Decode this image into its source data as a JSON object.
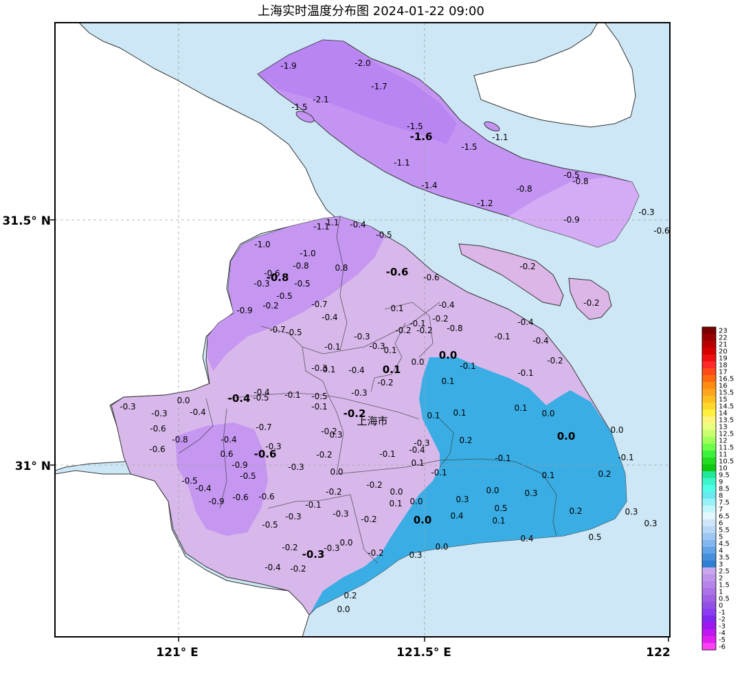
{
  "title": "上海实时温度分布图 2024-01-22 09:00",
  "map": {
    "city_label": "上海市",
    "x_ticks": [
      "121° E",
      "121.5° E",
      "122"
    ],
    "y_ticks": [
      "31.5° N",
      "31° N"
    ],
    "stations_regular": [
      [
        "-1.9",
        420,
        96
      ],
      [
        "-2.0",
        528,
        92
      ],
      [
        "-1.7",
        552,
        126
      ],
      [
        "-2.1",
        467,
        145
      ],
      [
        "-1.5",
        436,
        156
      ],
      [
        "-1.5",
        604,
        184
      ],
      [
        "-1.5",
        683,
        214
      ],
      [
        "-1.1",
        728,
        200
      ],
      [
        "-1.1",
        585,
        237
      ],
      [
        "-1.4",
        625,
        270
      ],
      [
        "-1.2",
        706,
        296
      ],
      [
        "-0.8",
        763,
        275
      ],
      [
        "-0.5",
        832,
        255
      ],
      [
        "-0.8",
        845,
        264
      ],
      [
        "-0.9",
        832,
        320
      ],
      [
        "-0.3",
        941,
        309
      ],
      [
        "-0.6",
        963,
        336
      ],
      [
        "-0.2",
        768,
        388
      ],
      [
        "-0.2",
        861,
        441
      ],
      [
        "-1.1",
        468,
        330
      ],
      [
        "1.1",
        484,
        324
      ],
      [
        "-0.4",
        521,
        327
      ],
      [
        "-0.5",
        559,
        342
      ],
      [
        "-1.0",
        382,
        356
      ],
      [
        "-1.0",
        448,
        369
      ],
      [
        "-0.8",
        438,
        387
      ],
      [
        "0.8",
        497,
        390
      ],
      [
        "-0.6",
        396,
        398
      ],
      [
        "-0.3",
        381,
        413
      ],
      [
        "-0.5",
        414,
        431
      ],
      [
        "-0.5",
        440,
        413
      ],
      [
        "-0.2",
        394,
        445
      ],
      [
        "-0.7",
        465,
        443
      ],
      [
        "-0.9",
        356,
        452
      ],
      [
        "-0.4",
        480,
        462
      ],
      [
        "-0.7",
        404,
        480
      ],
      [
        "-0.5",
        428,
        484
      ],
      [
        "-0.6",
        628,
        404
      ],
      [
        "-0.4",
        650,
        444
      ],
      [
        "0.1",
        578,
        449
      ],
      [
        "-0.2",
        641,
        464
      ],
      [
        "-0.1",
        608,
        471
      ],
      [
        "-0.2",
        618,
        481
      ],
      [
        "-0.2",
        587,
        481
      ],
      [
        "-0.8",
        662,
        478
      ],
      [
        "-0.3",
        527,
        490
      ],
      [
        "-0.1",
        484,
        505
      ],
      [
        "-0.3",
        549,
        504
      ],
      [
        "0.1",
        568,
        510
      ],
      [
        "0.0",
        608,
        527
      ],
      [
        "-0.1",
        681,
        533
      ],
      [
        "-0.4",
        765,
        469
      ],
      [
        "-0.1",
        731,
        490
      ],
      [
        "-0.4",
        787,
        496
      ],
      [
        "-0.2",
        808,
        525
      ],
      [
        "-0.1",
        765,
        543
      ],
      [
        "-0.3",
        465,
        536
      ],
      [
        "0.1",
        479,
        538
      ],
      [
        "-0.4",
        519,
        539
      ],
      [
        "-0.2",
        561,
        557
      ],
      [
        "0.1",
        652,
        555
      ],
      [
        "-0.3",
        523,
        572
      ],
      [
        "-0.3",
        186,
        592
      ],
      [
        "0.0",
        267,
        583
      ],
      [
        "-0.3",
        232,
        602
      ],
      [
        "-0.4",
        288,
        600
      ],
      [
        "-0.4",
        381,
        571
      ],
      [
        "-0.5",
        380,
        579
      ],
      [
        "-0.1",
        426,
        575
      ],
      [
        "-0.5",
        465,
        577
      ],
      [
        "-0.1",
        465,
        592
      ],
      [
        "0.1",
        669,
        601
      ],
      [
        "0.1",
        631,
        605
      ],
      [
        "0.1",
        758,
        594
      ],
      [
        "0.0",
        798,
        602
      ],
      [
        "0.0",
        898,
        626
      ],
      [
        "-0.6",
        230,
        624
      ],
      [
        "-0.8",
        262,
        640
      ],
      [
        "-0.4",
        333,
        640
      ],
      [
        "-0.7",
        384,
        622
      ],
      [
        "-0.3",
        398,
        650
      ],
      [
        "-0.2",
        479,
        628
      ],
      [
        "0.3",
        489,
        633
      ],
      [
        "-0.3",
        614,
        645
      ],
      [
        "-0.4",
        607,
        655
      ],
      [
        "0.2",
        678,
        641
      ],
      [
        "-0.6",
        229,
        654
      ],
      [
        "0.6",
        330,
        661
      ],
      [
        "-0.9",
        349,
        677
      ],
      [
        "-0.5",
        361,
        693
      ],
      [
        "-0.5",
        276,
        700
      ],
      [
        "-0.4",
        296,
        711
      ],
      [
        "-0.2",
        472,
        662
      ],
      [
        "-0.1",
        564,
        661
      ],
      [
        "0.1",
        608,
        674
      ],
      [
        "-0.1",
        732,
        667
      ],
      [
        "-0.1",
        911,
        666
      ],
      [
        "-0.3",
        431,
        680
      ],
      [
        "0.0",
        490,
        687
      ],
      [
        "-0.1",
        639,
        688
      ],
      [
        "0.1",
        798,
        692
      ],
      [
        "0.2",
        880,
        690
      ],
      [
        "-0.9",
        315,
        730
      ],
      [
        "-0.6",
        350,
        724
      ],
      [
        "-0.6",
        388,
        723
      ],
      [
        "-0.2",
        486,
        716
      ],
      [
        "-0.2",
        545,
        706
      ],
      [
        "0.0",
        577,
        716
      ],
      [
        "0.1",
        576,
        733
      ],
      [
        "0.0",
        606,
        730
      ],
      [
        "0.3",
        673,
        727
      ],
      [
        "0.0",
        717,
        714
      ],
      [
        "0.3",
        773,
        718
      ],
      [
        "-0.1",
        456,
        735
      ],
      [
        "-0.3",
        427,
        752
      ],
      [
        "-0.3",
        496,
        748
      ],
      [
        "-0.2",
        537,
        756
      ],
      [
        "0.4",
        665,
        751
      ],
      [
        "0.5",
        729,
        740
      ],
      [
        "0.1",
        726,
        758
      ],
      [
        "0.2",
        838,
        744
      ],
      [
        "0.3",
        919,
        745
      ],
      [
        "0.3",
        947,
        762
      ],
      [
        "-0.5",
        393,
        764
      ],
      [
        "-0.2",
        422,
        797
      ],
      [
        "-0.3",
        483,
        798
      ],
      [
        "0.0",
        504,
        790
      ],
      [
        "0.0",
        643,
        796
      ],
      [
        "0.4",
        767,
        784
      ],
      [
        "0.5",
        866,
        782
      ],
      [
        "-0.2",
        547,
        805
      ],
      [
        "0.3",
        605,
        808
      ],
      [
        "-0.4",
        397,
        826
      ],
      [
        "-0.2",
        434,
        828
      ],
      [
        "0.2",
        510,
        867
      ],
      [
        "0.0",
        500,
        887
      ]
    ],
    "stations_bold": [
      [
        "-1.6",
        613,
        200
      ],
      [
        "-0.6",
        578,
        397
      ],
      [
        "-0.8",
        404,
        405
      ],
      [
        "0.0",
        652,
        518
      ],
      [
        "0.1",
        570,
        539
      ],
      [
        "-0.4",
        348,
        581
      ],
      [
        "-0.2",
        516,
        603
      ],
      [
        "0.0",
        824,
        636
      ],
      [
        "-0.6",
        386,
        662
      ],
      [
        "0.0",
        615,
        758
      ],
      [
        "-0.3",
        456,
        808
      ]
    ]
  },
  "colorbar": {
    "labels": [
      "23",
      "22",
      "21",
      "20",
      "19",
      "18",
      "17",
      "16.5",
      "16",
      "15.5",
      "15",
      "14.5",
      "14",
      "13.5",
      "13",
      "12.5",
      "12",
      "11.5",
      "11",
      "10.5",
      "10",
      "9.5",
      "9",
      "8.5",
      "8",
      "7.5",
      "7",
      "6.5",
      "6",
      "5.5",
      "5",
      "4.5",
      "4",
      "3.5",
      "3",
      "2.5",
      "2",
      "1.5",
      "1",
      "0.5",
      "0",
      "-1",
      "-2",
      "-3",
      "-4",
      "-5",
      "-6"
    ],
    "colors": [
      "#7a0000",
      "#9a0000",
      "#b80000",
      "#d60000",
      "#ef0f0f",
      "#ff2a2a",
      "#ff4a1a",
      "#ff6a10",
      "#ff8c10",
      "#ffa420",
      "#ffbe22",
      "#ffd62a",
      "#fff040",
      "#fff47a",
      "#e8ff80",
      "#c8ff6e",
      "#a0ff5a",
      "#6cff4a",
      "#3cf03c",
      "#22dc22",
      "#10c810",
      "#20e89a",
      "#3cf5c8",
      "#50ffe6",
      "#6ae8f0",
      "#96f2f8",
      "#c2f6fb",
      "#e4f7fd",
      "#cfe6fa",
      "#b8d8f8",
      "#9ec8f4",
      "#82b6ee",
      "#62a2e6",
      "#4590dc",
      "#2f80d2",
      "#c9a7ec",
      "#c094ea",
      "#b684e8",
      "#ab72e6",
      "#a060e6",
      "#9250e6",
      "#8b3cf0",
      "#8028f2",
      "#a018f0",
      "#c018f0",
      "#e020f0",
      "#ff40f5"
    ]
  }
}
